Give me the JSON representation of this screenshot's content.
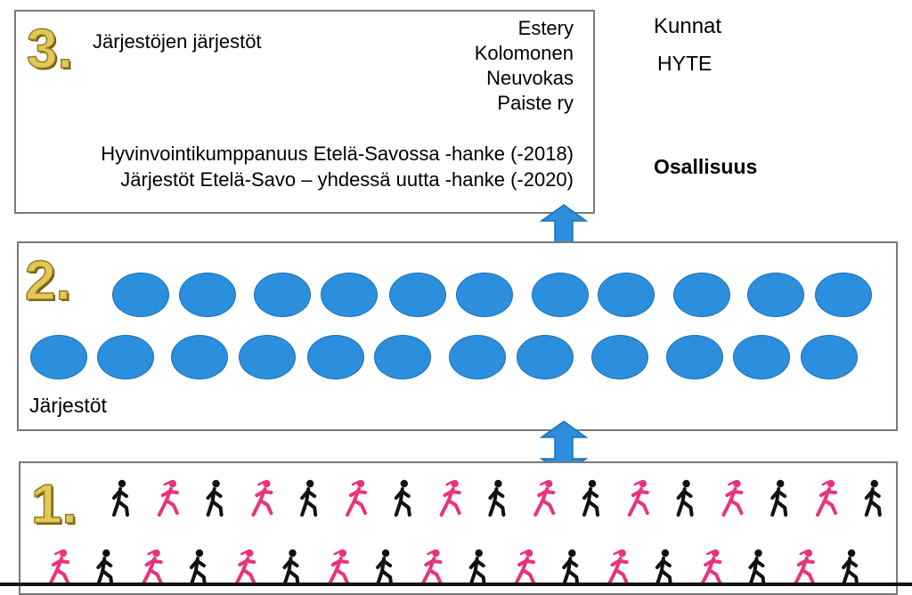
{
  "level3": {
    "number": "3.",
    "title": "Järjestöjen järjestöt",
    "orgs": [
      "Estery",
      "Kolomonen",
      "Neuvokas",
      "Paiste ry"
    ],
    "projects": [
      "Hyvinvointikumppanuus Etelä-Savossa -hanke (-2018)",
      "Järjestöt Etelä-Savo – yhdessä uutta -hanke (-2020)"
    ]
  },
  "side": {
    "kunnat": "Kunnat",
    "hyte": "HYTE",
    "osallisuus": "Osallisuus"
  },
  "level2": {
    "number": "2.",
    "label": "Järjestöt",
    "row1_count": 11,
    "row2_count": 12
  },
  "level1": {
    "number": "1.",
    "row1_pattern": [
      "walker",
      "runner",
      "walker",
      "runner",
      "walker",
      "runner",
      "walker",
      "runner",
      "walker",
      "runner",
      "walker",
      "runner",
      "walker",
      "runner",
      "walker",
      "runner",
      "walker"
    ],
    "row2_pattern": [
      "runner",
      "walker",
      "runner",
      "walker",
      "runner",
      "walker",
      "runner",
      "walker",
      "runner",
      "walker",
      "runner",
      "walker",
      "runner",
      "walker",
      "runner",
      "walker",
      "runner",
      "walker"
    ]
  },
  "colors": {
    "ellipse": "#2b8fde",
    "arrow": "#2b8fde",
    "walker": "#111111",
    "runner": "#e8337d",
    "number_gold": "#e0c85a"
  }
}
